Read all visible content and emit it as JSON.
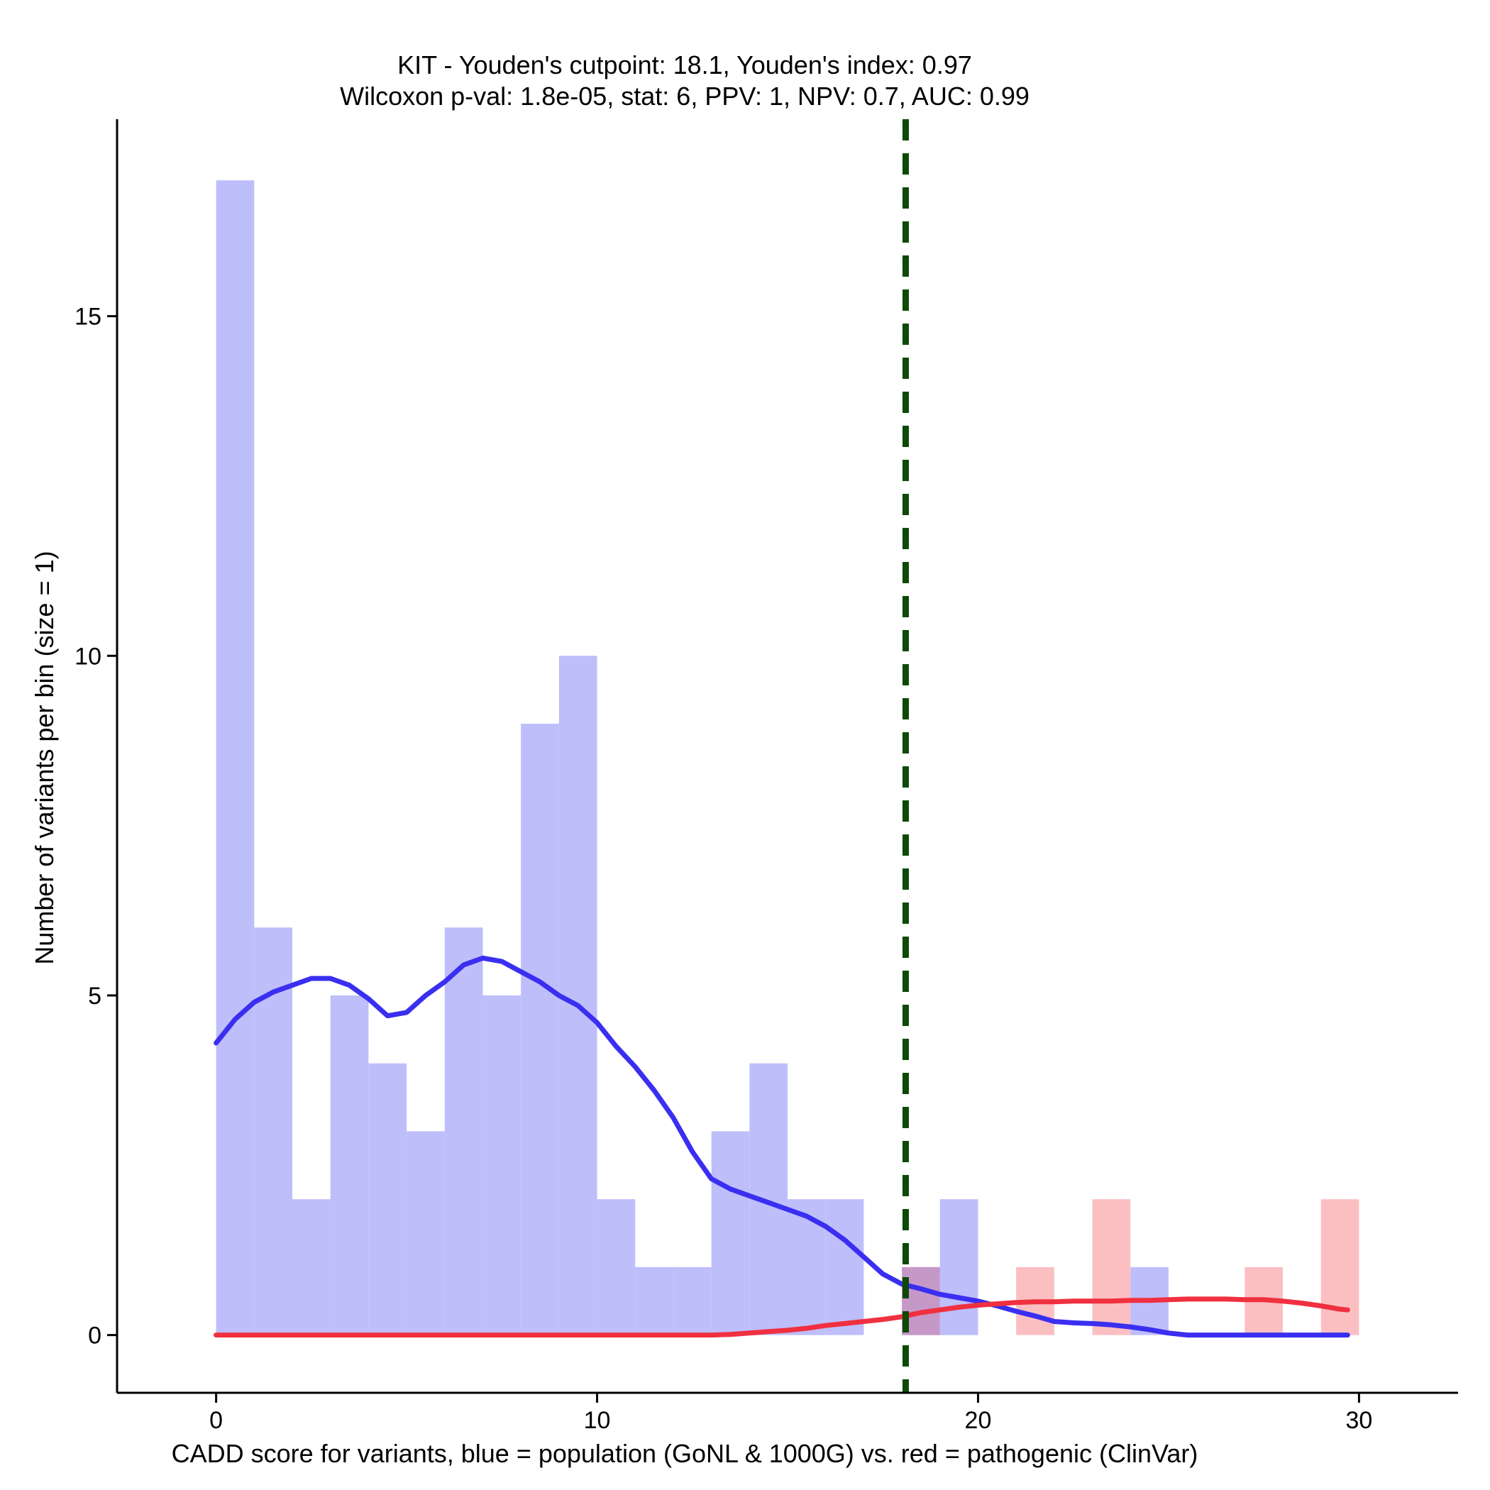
{
  "chart_data": {
    "type": "bar",
    "title_line1": "KIT - Youden's cutpoint: 18.1, Youden's index: 0.97",
    "title_line2": "Wilcoxon p-val: 1.8e-05, stat: 6, PPV: 1, NPV: 0.7, AUC: 0.99",
    "xlabel": "CADD score for variants, blue = population (GoNL & 1000G) vs. red = pathogenic (ClinVar)",
    "ylabel": "Number of variants per bin (size = 1)",
    "xlim": [
      -2.6,
      32.6
    ],
    "ylim": [
      -0.85,
      17.9
    ],
    "x_ticks": [
      0,
      10,
      20,
      30
    ],
    "y_ticks": [
      0,
      5,
      10,
      15
    ],
    "bin_width": 1,
    "cutpoint": 18.1,
    "colors": {
      "population_bar": "#bebefb",
      "pathogenic_bar": "#fbbfc2",
      "overlap_bar": "#c598c8",
      "population_line": "#3a2ff0",
      "pathogenic_line": "#f03040",
      "cutpoint_line": "#0c4a06"
    },
    "series": [
      {
        "name": "population (GoNL & 1000G)",
        "bin_starts": [
          0,
          1,
          2,
          3,
          4,
          5,
          6,
          7,
          8,
          9,
          10,
          11,
          12,
          13,
          14,
          15,
          16,
          17,
          18,
          19,
          20,
          21,
          22,
          23,
          24,
          25,
          26,
          27,
          28,
          29
        ],
        "values": [
          17,
          6,
          2,
          5,
          4,
          3,
          6,
          5,
          9,
          10,
          2,
          1,
          1,
          3,
          4,
          2,
          2,
          0,
          1,
          2,
          0,
          0,
          0,
          0,
          1,
          0,
          0,
          0,
          0,
          0
        ]
      },
      {
        "name": "pathogenic (ClinVar)",
        "bin_starts": [
          0,
          1,
          2,
          3,
          4,
          5,
          6,
          7,
          8,
          9,
          10,
          11,
          12,
          13,
          14,
          15,
          16,
          17,
          18,
          19,
          20,
          21,
          22,
          23,
          24,
          25,
          26,
          27,
          28,
          29
        ],
        "values": [
          0,
          0,
          0,
          0,
          0,
          0,
          0,
          0,
          0,
          0,
          0,
          0,
          0,
          0,
          0,
          0,
          0,
          0,
          1,
          0,
          0,
          1,
          0,
          2,
          0,
          0,
          0,
          1,
          0,
          2
        ]
      }
    ],
    "density_lines": [
      {
        "name": "population density",
        "x": [
          0,
          0.5,
          1,
          1.5,
          2,
          2.5,
          3,
          3.5,
          4,
          4.5,
          5,
          5.5,
          6,
          6.5,
          7,
          7.5,
          8,
          8.5,
          9,
          9.5,
          10,
          10.5,
          11,
          11.5,
          12,
          12.5,
          13,
          13.5,
          14,
          14.5,
          15,
          15.5,
          16,
          16.5,
          17,
          17.5,
          18,
          18.5,
          19,
          19.5,
          20,
          20.5,
          21,
          21.5,
          22,
          22.5,
          23,
          23.5,
          24,
          24.5,
          25,
          25.5,
          26,
          26.5,
          27,
          27.5,
          28,
          28.5,
          29,
          29.5,
          29.7
        ],
        "y": [
          4.3,
          4.65,
          4.9,
          5.05,
          5.15,
          5.25,
          5.25,
          5.15,
          4.95,
          4.7,
          4.75,
          5.0,
          5.2,
          5.45,
          5.55,
          5.5,
          5.35,
          5.2,
          5.0,
          4.85,
          4.6,
          4.25,
          3.95,
          3.6,
          3.2,
          2.7,
          2.3,
          2.15,
          2.05,
          1.95,
          1.85,
          1.75,
          1.6,
          1.4,
          1.15,
          0.9,
          0.75,
          0.68,
          0.6,
          0.55,
          0.5,
          0.43,
          0.35,
          0.28,
          0.2,
          0.18,
          0.17,
          0.15,
          0.12,
          0.08,
          0.03,
          0.0,
          0.0,
          0.0,
          0.0,
          0.0,
          0.0,
          0.0,
          0.0,
          0.0,
          0.0
        ]
      },
      {
        "name": "pathogenic density",
        "x": [
          0,
          1,
          2,
          3,
          4,
          5,
          6,
          7,
          8,
          9,
          10,
          11,
          12,
          13,
          13.5,
          14,
          14.5,
          15,
          15.5,
          16,
          16.5,
          17,
          17.5,
          18,
          18.5,
          19,
          19.5,
          20,
          20.5,
          21,
          21.5,
          22,
          22.5,
          23,
          23.5,
          24,
          24.5,
          25,
          25.5,
          26,
          26.5,
          27,
          27.5,
          28,
          28.5,
          29,
          29.5,
          29.7
        ],
        "y": [
          0,
          0,
          0,
          0,
          0,
          0,
          0,
          0,
          0,
          0,
          0,
          0,
          0,
          0,
          0.01,
          0.03,
          0.05,
          0.07,
          0.1,
          0.14,
          0.17,
          0.2,
          0.23,
          0.27,
          0.33,
          0.37,
          0.41,
          0.44,
          0.46,
          0.48,
          0.49,
          0.49,
          0.5,
          0.5,
          0.5,
          0.51,
          0.51,
          0.52,
          0.53,
          0.53,
          0.53,
          0.52,
          0.52,
          0.5,
          0.47,
          0.43,
          0.38,
          0.37
        ]
      }
    ]
  }
}
